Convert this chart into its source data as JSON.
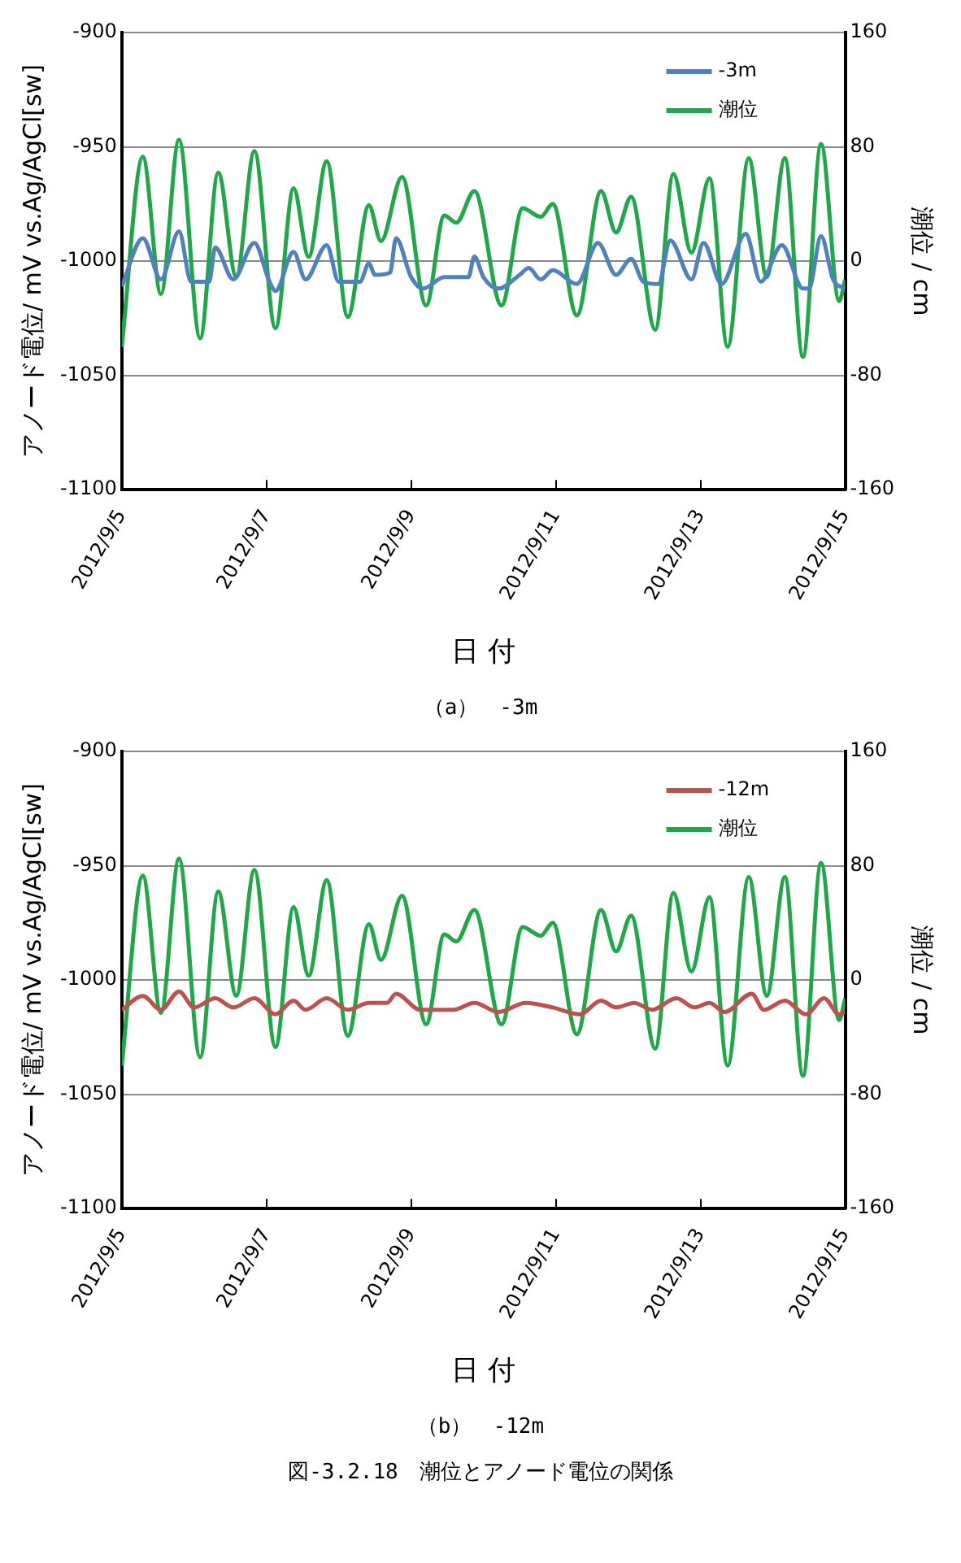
{
  "chart_data": [
    {
      "type": "line",
      "xlabel": "日 付",
      "ylabel": "アノード電位/ mV vs.Ag/AgCl[sw]",
      "y2label": "潮位 / cm",
      "annotations": [
        "（a）　-3m"
      ],
      "xlim": [
        "2012-09-05",
        "2012-09-15"
      ],
      "xticks": [
        {
          "value": "2012-09-05",
          "label": "2012/9/5"
        },
        {
          "value": "2012-09-07",
          "label": "2012/9/7"
        },
        {
          "value": "2012-09-09",
          "label": "2012/9/9"
        },
        {
          "value": "2012-09-11",
          "label": "2012/9/11"
        },
        {
          "value": "2012-09-13",
          "label": "2012/9/13"
        },
        {
          "value": "2012-09-15",
          "label": "2012/9/15"
        }
      ],
      "ylim": [
        -1100,
        -900
      ],
      "yticks": [
        -1100,
        -1050,
        -1000,
        -950,
        -900
      ],
      "y2lim": [
        -160,
        160
      ],
      "y2ticks": [
        -160,
        -80,
        0,
        80,
        160
      ],
      "grid": "y",
      "legend": "top right",
      "marker": "none",
      "line_style": "solid",
      "series": [
        {
          "name": "-3m",
          "color": "#4f81bd",
          "x": [
            "2012-09-05T00:00",
            "2012-09-05T07:00",
            "2012-09-05T13:00",
            "2012-09-05T19:00",
            "2012-09-05T23:00",
            "2012-09-06T05:00",
            "2012-09-06T07:00",
            "2012-09-06T13:00",
            "2012-09-06T20:00",
            "2012-09-07T01:00",
            "2012-09-07T03:00",
            "2012-09-07T09:00",
            "2012-09-07T13:00",
            "2012-09-07T20:00",
            "2012-09-08T00:00",
            "2012-09-08T07:00",
            "2012-09-08T10:00",
            "2012-09-08T12:00",
            "2012-09-08T17:00",
            "2012-09-08T19:00",
            "2012-09-09T00:00",
            "2012-09-09T04:00",
            "2012-09-09T11:00",
            "2012-09-09T19:00",
            "2012-09-09T21:00",
            "2012-09-10T00:00",
            "2012-09-10T05:00",
            "2012-09-10T12:00",
            "2012-09-10T15:00",
            "2012-09-10T19:00",
            "2012-09-10T23:00",
            "2012-09-11T07:00",
            "2012-09-11T14:00",
            "2012-09-11T20:00",
            "2012-09-12T01:00",
            "2012-09-12T05:00",
            "2012-09-12T10:00",
            "2012-09-12T14:00",
            "2012-09-12T21:00",
            "2012-09-13T01:00",
            "2012-09-13T07:00",
            "2012-09-13T15:00",
            "2012-09-13T20:00",
            "2012-09-14T03:00",
            "2012-09-14T10:00",
            "2012-09-14T12:00",
            "2012-09-14T16:00",
            "2012-09-14T20:00",
            "2012-09-15T00:00"
          ],
          "values": [
            -1011,
            -990,
            -1008,
            -987,
            -1009,
            -1009,
            -994,
            -1008,
            -992,
            -1009,
            -1013,
            -996,
            -1008,
            -993,
            -1009,
            -1009,
            -1001,
            -1006,
            -1005,
            -990,
            -1007,
            -1012,
            -1007,
            -1007,
            -998,
            -1007,
            -1012,
            -1006,
            -1003,
            -1008,
            -1004,
            -1010,
            -992,
            -1006,
            -999,
            -1009,
            -1010,
            -991,
            -1008,
            -992,
            -1010,
            -988,
            -1009,
            -993,
            -1012,
            -1012,
            -989,
            -1008,
            -1012
          ]
        },
        {
          "name": "潮位",
          "color": "#1fa84a",
          "axis": "y2",
          "x": [
            "2012-09-05T00:00",
            "2012-09-05T07:00",
            "2012-09-05T13:00",
            "2012-09-05T19:00",
            "2012-09-06T02:00",
            "2012-09-06T08:00",
            "2012-09-06T14:00",
            "2012-09-06T20:00",
            "2012-09-07T03:00",
            "2012-09-07T09:00",
            "2012-09-07T14:00",
            "2012-09-07T20:00",
            "2012-09-08T03:00",
            "2012-09-08T10:00",
            "2012-09-08T14:00",
            "2012-09-08T21:00",
            "2012-09-09T05:00",
            "2012-09-09T11:00",
            "2012-09-09T15:00",
            "2012-09-09T21:00",
            "2012-09-10T06:00",
            "2012-09-10T13:00",
            "2012-09-10T19:00",
            "2012-09-10T23:00",
            "2012-09-11T07:00",
            "2012-09-11T15:00",
            "2012-09-11T20:00",
            "2012-09-12T01:00",
            "2012-09-12T09:00",
            "2012-09-12T15:00",
            "2012-09-12T21:00",
            "2012-09-13T03:00",
            "2012-09-13T09:00",
            "2012-09-13T16:00",
            "2012-09-13T22:00",
            "2012-09-14T04:00",
            "2012-09-14T10:00",
            "2012-09-14T16:00",
            "2012-09-14T22:00",
            "2012-09-15T00:00"
          ],
          "values": [
            -60,
            73,
            -23,
            85,
            -54,
            62,
            -11,
            77,
            -47,
            51,
            3,
            70,
            -39,
            39,
            14,
            59,
            -31,
            32,
            27,
            49,
            -31,
            37,
            31,
            40,
            -38,
            49,
            20,
            45,
            -48,
            61,
            6,
            58,
            -60,
            72,
            -11,
            72,
            -67,
            82,
            -28,
            -13
          ]
        }
      ]
    },
    {
      "type": "line",
      "xlabel": "日 付",
      "ylabel": "アノード電位/ mV vs.Ag/AgCl[sw]",
      "y2label": "潮位 / cm",
      "annotations": [
        "（b）　-12m",
        "図-3.2.18　潮位とアノード電位の関係"
      ],
      "xlim": [
        "2012-09-05",
        "2012-09-15"
      ],
      "xticks": [
        {
          "value": "2012-09-05",
          "label": "2012/9/5"
        },
        {
          "value": "2012-09-07",
          "label": "2012/9/7"
        },
        {
          "value": "2012-09-09",
          "label": "2012/9/9"
        },
        {
          "value": "2012-09-11",
          "label": "2012/9/11"
        },
        {
          "value": "2012-09-13",
          "label": "2012/9/13"
        },
        {
          "value": "2012-09-15",
          "label": "2012/9/15"
        }
      ],
      "ylim": [
        -1100,
        -900
      ],
      "yticks": [
        -1100,
        -1050,
        -1000,
        -950,
        -900
      ],
      "y2lim": [
        -160,
        160
      ],
      "y2ticks": [
        -160,
        -80,
        0,
        80,
        160
      ],
      "grid": "y",
      "legend": "top right",
      "marker": "none",
      "line_style": "solid",
      "series": [
        {
          "name": "-12m",
          "color": "#c0504d",
          "x": [
            "2012-09-05T00:00",
            "2012-09-05T07:00",
            "2012-09-05T13:00",
            "2012-09-05T19:00",
            "2012-09-06T00:00",
            "2012-09-06T07:00",
            "2012-09-06T13:00",
            "2012-09-06T20:00",
            "2012-09-07T03:00",
            "2012-09-07T09:00",
            "2012-09-07T13:00",
            "2012-09-07T20:00",
            "2012-09-08T03:00",
            "2012-09-08T10:00",
            "2012-09-08T16:00",
            "2012-09-08T19:00",
            "2012-09-09T03:00",
            "2012-09-09T14:00",
            "2012-09-09T21:00",
            "2012-09-10T05:00",
            "2012-09-10T14:00",
            "2012-09-10T23:00",
            "2012-09-11T08:00",
            "2012-09-11T15:00",
            "2012-09-11T20:00",
            "2012-09-12T02:00",
            "2012-09-12T08:00",
            "2012-09-12T16:00",
            "2012-09-12T22:00",
            "2012-09-13T03:00",
            "2012-09-13T08:00",
            "2012-09-13T17:00",
            "2012-09-13T21:00",
            "2012-09-14T04:00",
            "2012-09-14T11:00",
            "2012-09-14T17:00",
            "2012-09-14T22:00",
            "2012-09-15T00:00"
          ],
          "values": [
            -1013,
            -1007,
            -1013,
            -1005,
            -1012,
            -1008,
            -1012,
            -1008,
            -1015,
            -1009,
            -1013,
            -1008,
            -1013,
            -1010,
            -1010,
            -1006,
            -1013,
            -1013,
            -1010,
            -1014,
            -1010,
            -1012,
            -1015,
            -1009,
            -1012,
            -1010,
            -1013,
            -1008,
            -1012,
            -1010,
            -1014,
            -1006,
            -1013,
            -1009,
            -1015,
            -1008,
            -1015,
            -1014
          ]
        },
        {
          "name": "潮位",
          "color": "#1fa84a",
          "axis": "y2",
          "x": [
            "2012-09-05T00:00",
            "2012-09-05T07:00",
            "2012-09-05T13:00",
            "2012-09-05T19:00",
            "2012-09-06T02:00",
            "2012-09-06T08:00",
            "2012-09-06T14:00",
            "2012-09-06T20:00",
            "2012-09-07T03:00",
            "2012-09-07T09:00",
            "2012-09-07T14:00",
            "2012-09-07T20:00",
            "2012-09-08T03:00",
            "2012-09-08T10:00",
            "2012-09-08T14:00",
            "2012-09-08T21:00",
            "2012-09-09T05:00",
            "2012-09-09T11:00",
            "2012-09-09T15:00",
            "2012-09-09T21:00",
            "2012-09-10T06:00",
            "2012-09-10T13:00",
            "2012-09-10T19:00",
            "2012-09-10T23:00",
            "2012-09-11T07:00",
            "2012-09-11T15:00",
            "2012-09-11T20:00",
            "2012-09-12T01:00",
            "2012-09-12T09:00",
            "2012-09-12T15:00",
            "2012-09-12T21:00",
            "2012-09-13T03:00",
            "2012-09-13T09:00",
            "2012-09-13T16:00",
            "2012-09-13T22:00",
            "2012-09-14T04:00",
            "2012-09-14T10:00",
            "2012-09-14T16:00",
            "2012-09-14T22:00",
            "2012-09-15T00:00"
          ],
          "values": [
            -60,
            73,
            -23,
            85,
            -54,
            62,
            -11,
            77,
            -47,
            51,
            3,
            70,
            -39,
            39,
            14,
            59,
            -31,
            32,
            27,
            49,
            -31,
            37,
            31,
            40,
            -38,
            49,
            20,
            45,
            -48,
            61,
            6,
            58,
            -60,
            72,
            -11,
            72,
            -67,
            82,
            -28,
            -13
          ]
        }
      ]
    }
  ]
}
